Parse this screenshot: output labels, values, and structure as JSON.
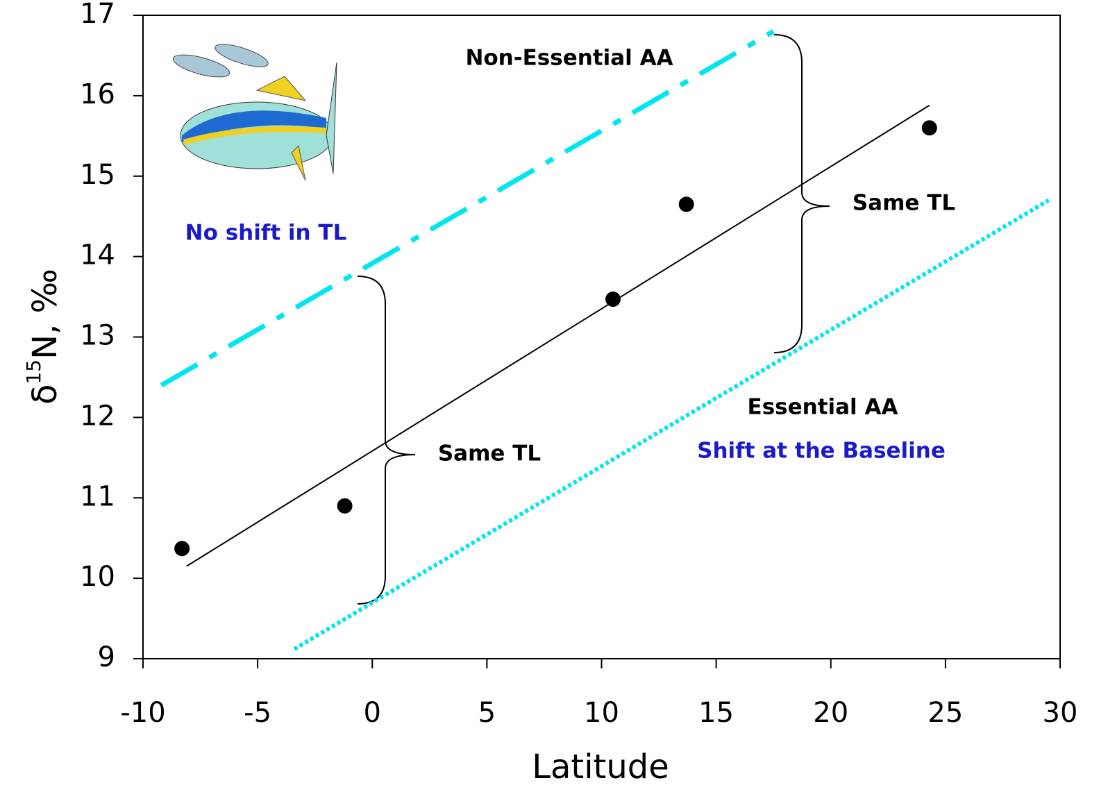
{
  "chart_data": {
    "type": "scatter",
    "ylabel": {
      "symbol": "δ",
      "superscript": "15",
      "rest": "N, ‰"
    },
    "xlabel": "Latitude",
    "xlim": [
      -10,
      30
    ],
    "xticks": [
      -10,
      -5,
      0,
      5,
      10,
      15,
      20,
      25,
      30
    ],
    "ylim": [
      9,
      17
    ],
    "yticks": [
      9,
      10,
      11,
      12,
      13,
      14,
      15,
      16,
      17
    ],
    "points": {
      "color": "#000000",
      "x": [
        -8.3,
        -1.2,
        10.5,
        13.7,
        24.3
      ],
      "values": [
        10.37,
        10.9,
        13.47,
        14.65,
        15.6
      ]
    },
    "lines": [
      {
        "style": "solid",
        "color": "#000000",
        "x": [
          -8.1,
          24.3
        ],
        "values": [
          10.15,
          15.88
        ]
      },
      {
        "style": "dash-dot",
        "color": "#00e5ee",
        "x": [
          -9.2,
          17.5
        ],
        "values": [
          12.4,
          16.8
        ]
      },
      {
        "style": "dotted",
        "color": "#00e5ee",
        "x": [
          -3.4,
          29.5
        ],
        "values": [
          9.12,
          14.7
        ]
      }
    ],
    "annotations": [
      {
        "text": "Non-Essential AA",
        "color": "#000000"
      },
      {
        "text": "No shift in TL",
        "color": "#1a1acc"
      },
      {
        "text": "Same TL",
        "color": "#000000"
      },
      {
        "text": "Same TL",
        "color": "#000000"
      },
      {
        "text": "Essential AA",
        "color": "#000000"
      },
      {
        "text": "Shift at the Baseline",
        "color": "#1a1acc"
      }
    ]
  }
}
